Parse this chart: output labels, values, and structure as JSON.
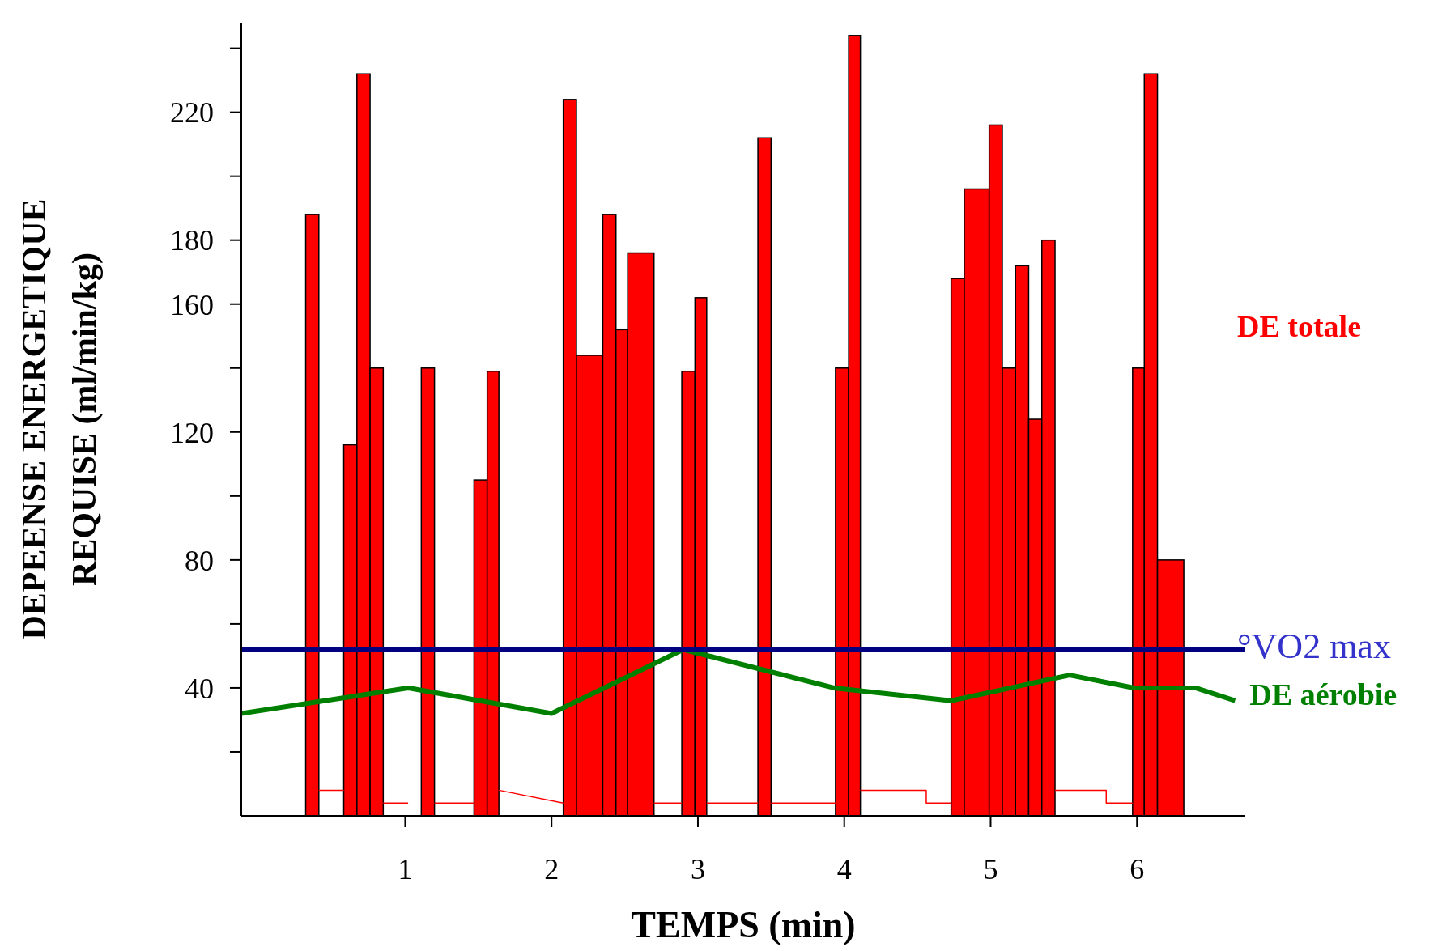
{
  "chart_data": {
    "type": "histogram",
    "xlabel": "TEMPS (min)",
    "ylabel": "DEPEENSE ENERGETIQUE REQUISE (ml/min/kg)",
    "xlim": [
      -0.12,
      6.74
    ],
    "xticks": [
      1,
      2,
      3,
      4,
      5,
      6
    ],
    "ylim": [
      0,
      248
    ],
    "yticks": [
      {
        "value": 20,
        "label": null
      },
      40,
      {
        "value": 60,
        "label": null
      },
      80,
      {
        "value": 100,
        "label": null
      },
      120,
      {
        "value": 140,
        "label": null
      },
      160,
      180,
      {
        "value": 200,
        "label": null
      },
      220,
      {
        "value": 240,
        "label": null
      }
    ],
    "series": [
      {
        "name": "DE totale",
        "color": "#ff0000",
        "bins": [
          0.32,
          0.41,
          0.58,
          0.67,
          0.76,
          0.85,
          1.11,
          1.2,
          1.47,
          1.56,
          1.64,
          2.08,
          2.17,
          2.35,
          2.44,
          2.52,
          2.7,
          2.89,
          2.98,
          3.06,
          3.41,
          3.5,
          3.94,
          4.03,
          4.11,
          4.73,
          4.82,
          4.99,
          5.08,
          5.17,
          5.26,
          5.35,
          5.44,
          5.97,
          6.05,
          6.14,
          6.32
        ],
        "values": [
          188,
          null,
          116,
          232,
          140,
          null,
          140,
          null,
          105,
          139,
          null,
          224,
          144,
          188,
          152,
          176,
          null,
          139,
          162,
          null,
          212,
          null,
          140,
          244,
          null,
          168,
          196,
          216,
          140,
          172,
          124,
          180,
          null,
          140,
          232,
          80
        ]
      },
      {
        "type": "line",
        "color": "#ff0000",
        "x": [
          0.41,
          0.58,
          0.7,
          0.85,
          1.02,
          1.1,
          1.2,
          1.47,
          1.55,
          1.64,
          2.08,
          2.3,
          2.7,
          2.89,
          3.0,
          3.06,
          3.41,
          3.45,
          3.5,
          3.94,
          4.05,
          4.11,
          4.56,
          4.56,
          4.73,
          5.0,
          5.44,
          5.79,
          5.79,
          5.97
        ],
        "values": [
          8,
          8,
          null,
          4,
          4,
          null,
          4,
          4,
          null,
          8,
          4,
          null,
          4,
          4,
          null,
          4,
          4,
          null,
          4,
          4,
          null,
          8,
          8,
          4,
          4,
          null,
          8,
          8,
          4,
          4
        ]
      },
      {
        "type": "line",
        "name": "DE aérobie",
        "color": "#008000",
        "x": [
          -0.12,
          1.02,
          2.0,
          2.9,
          3.93,
          4.73,
          5.54,
          5.98,
          6.4,
          6.67
        ],
        "values": [
          32,
          40,
          32,
          52,
          40,
          36,
          44,
          40,
          40,
          36
        ]
      }
    ],
    "ref_lines": [
      {
        "axis": "y",
        "value": 52,
        "label": "°VO2 max",
        "color": "#000080"
      }
    ]
  }
}
